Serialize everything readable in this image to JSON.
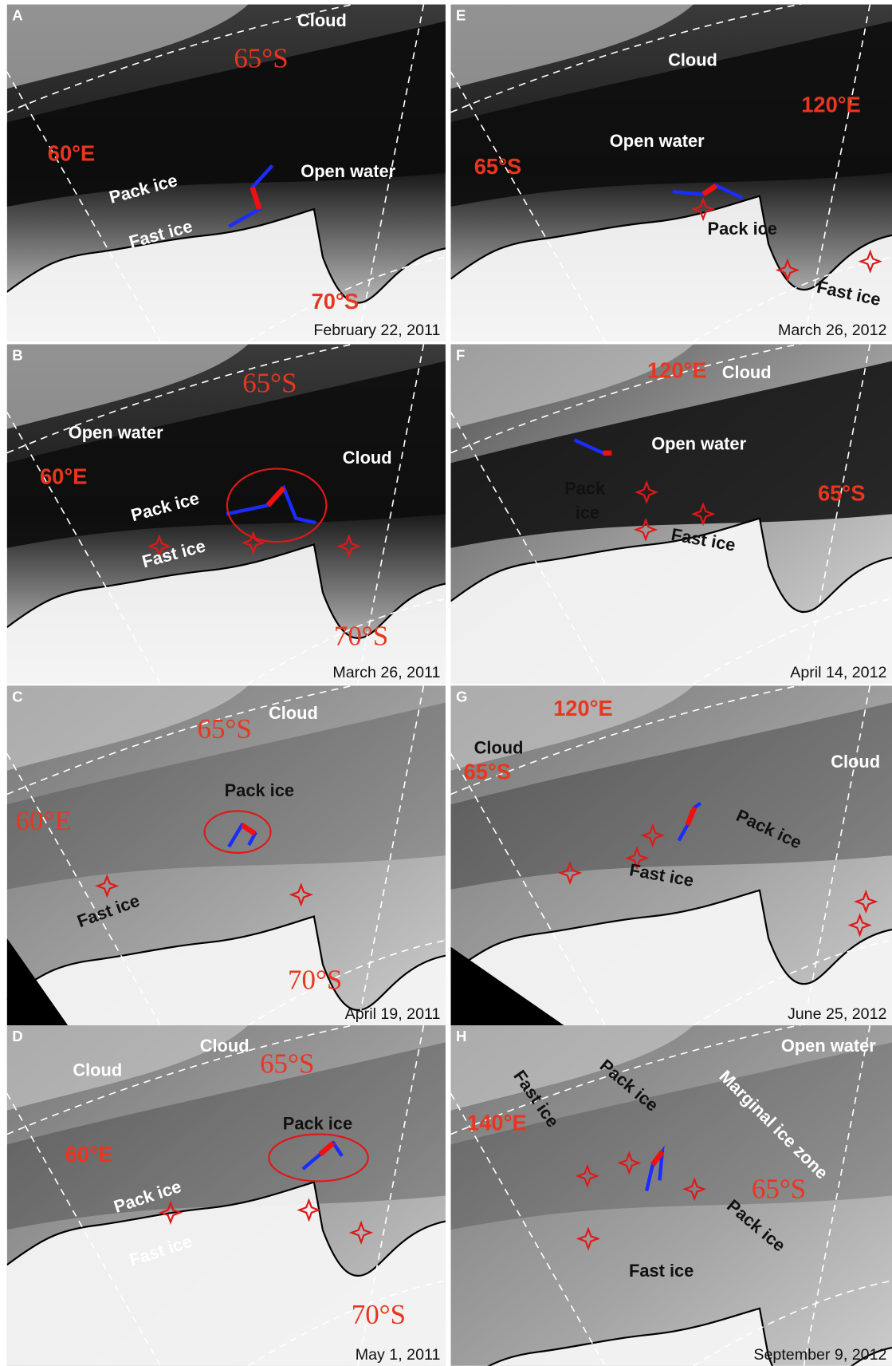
{
  "panels": [
    {
      "letter": "A",
      "date": "February 22, 2011",
      "labels": [
        "Cloud",
        "65°S",
        "60°E",
        "Open water",
        "Pack ice",
        "Fast ice",
        "70°S"
      ]
    },
    {
      "letter": "B",
      "date": "March 26, 2011",
      "labels": [
        "65°S",
        "Open water",
        "Cloud",
        "60°E",
        "Pack ice",
        "Fast ice",
        "70°S"
      ]
    },
    {
      "letter": "C",
      "date": "April 19, 2011",
      "labels": [
        "Cloud",
        "65°S",
        "Pack ice",
        "60°E",
        "Fast ice",
        "70°S"
      ]
    },
    {
      "letter": "D",
      "date": "May 1, 2011",
      "labels": [
        "Cloud",
        "Cloud",
        "65°S",
        "Pack ice",
        "60°E",
        "Pack ice",
        "Fast ice",
        "70°S"
      ]
    },
    {
      "letter": "E",
      "date": "March 26, 2012",
      "labels": [
        "Cloud",
        "120°E",
        "Open water",
        "65°S",
        "Pack ice",
        "Fast ice"
      ]
    },
    {
      "letter": "F",
      "date": "April 14, 2012",
      "labels": [
        "120°E",
        "Cloud",
        "Open water",
        "Pack",
        "ice",
        "65°S",
        "Fast ice"
      ]
    },
    {
      "letter": "G",
      "date": "June 25, 2012",
      "labels": [
        "120°E",
        "Cloud",
        "65°S",
        "Cloud",
        "Pack ice",
        "Fast ice"
      ]
    },
    {
      "letter": "H",
      "date": "September 9, 2012",
      "labels": [
        "Open water",
        "Fast ice",
        "Pack ice",
        "Marginal ice zone",
        "140°E",
        "65°S",
        "Pack ice",
        "Fast ice"
      ]
    }
  ]
}
